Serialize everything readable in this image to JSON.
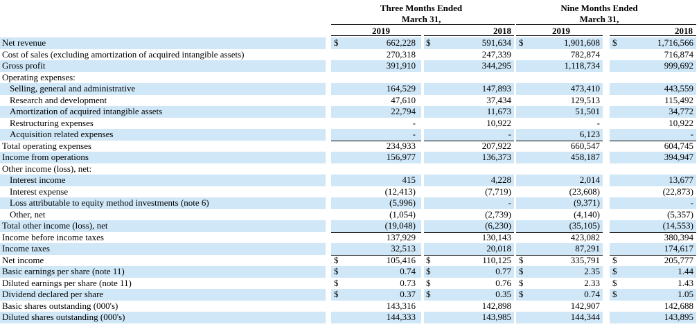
{
  "headers": {
    "three_months": "Three Months Ended",
    "nine_months": "Nine Months Ended",
    "march": "March 31,",
    "years": [
      "2019",
      "2018",
      "2019",
      "2018"
    ]
  },
  "rows": [
    {
      "label": "Net revenue",
      "indent": false,
      "values": [
        "662,228",
        "591,634",
        "1,901,608",
        "1,716,566"
      ],
      "dollar": [
        true,
        true,
        true,
        true
      ],
      "shade": true
    },
    {
      "label": "Cost of sales (excluding amortization of acquired intangible assets)",
      "indent": false,
      "values": [
        "270,318",
        "247,339",
        "782,874",
        "716,874"
      ],
      "dollar": [
        false,
        false,
        false,
        false
      ],
      "shade": false,
      "ul": true
    },
    {
      "label": "Gross profit",
      "indent": false,
      "values": [
        "391,910",
        "344,295",
        "1,118,734",
        "999,692"
      ],
      "dollar": [
        false,
        false,
        false,
        false
      ],
      "shade": true
    },
    {
      "label": "Operating expenses:",
      "indent": false,
      "values": [
        "",
        "",
        "",
        ""
      ],
      "dollar": [
        false,
        false,
        false,
        false
      ],
      "shade": false
    },
    {
      "label": "Selling, general and administrative",
      "indent": true,
      "values": [
        "164,529",
        "147,893",
        "473,410",
        "443,559"
      ],
      "dollar": [
        false,
        false,
        false,
        false
      ],
      "shade": true
    },
    {
      "label": "Research and development",
      "indent": true,
      "values": [
        "47,610",
        "37,434",
        "129,513",
        "115,492"
      ],
      "dollar": [
        false,
        false,
        false,
        false
      ],
      "shade": false
    },
    {
      "label": "Amortization of acquired intangible assets",
      "indent": true,
      "values": [
        "22,794",
        "11,673",
        "51,501",
        "34,772"
      ],
      "dollar": [
        false,
        false,
        false,
        false
      ],
      "shade": true
    },
    {
      "label": "Restructuring expenses",
      "indent": true,
      "values": [
        "-",
        "10,922",
        "-",
        "10,922"
      ],
      "dollar": [
        false,
        false,
        false,
        false
      ],
      "shade": false
    },
    {
      "label": "Acquisition related expenses",
      "indent": true,
      "values": [
        "-",
        "-",
        "6,123",
        "-"
      ],
      "dollar": [
        false,
        false,
        false,
        false
      ],
      "shade": true,
      "ul": true
    },
    {
      "label": "Total operating expenses",
      "indent": false,
      "values": [
        "234,933",
        "207,922",
        "660,547",
        "604,745"
      ],
      "dollar": [
        false,
        false,
        false,
        false
      ],
      "shade": false,
      "ul": true
    },
    {
      "label": "Income from operations",
      "indent": false,
      "values": [
        "156,977",
        "136,373",
        "458,187",
        "394,947"
      ],
      "dollar": [
        false,
        false,
        false,
        false
      ],
      "shade": true
    },
    {
      "label": "Other income (loss), net:",
      "indent": false,
      "values": [
        "",
        "",
        "",
        ""
      ],
      "dollar": [
        false,
        false,
        false,
        false
      ],
      "shade": false
    },
    {
      "label": "Interest income",
      "indent": true,
      "values": [
        "415",
        "4,228",
        "2,014",
        "13,677"
      ],
      "dollar": [
        false,
        false,
        false,
        false
      ],
      "shade": true
    },
    {
      "label": "Interest expense",
      "indent": true,
      "values": [
        "(12,413)",
        "(7,719)",
        "(23,608)",
        "(22,873)"
      ],
      "dollar": [
        false,
        false,
        false,
        false
      ],
      "shade": false
    },
    {
      "label": "Loss attributable to equity method investments (note 6)",
      "indent": true,
      "values": [
        "(5,996)",
        "-",
        "(9,371)",
        "-"
      ],
      "dollar": [
        false,
        false,
        false,
        false
      ],
      "shade": true
    },
    {
      "label": "Other, net",
      "indent": true,
      "values": [
        "(1,054)",
        "(2,739)",
        "(4,140)",
        "(5,357)"
      ],
      "dollar": [
        false,
        false,
        false,
        false
      ],
      "shade": false,
      "ul": true
    },
    {
      "label": "Total other income (loss), net",
      "indent": false,
      "values": [
        "(19,048)",
        "(6,230)",
        "(35,105)",
        "(14,553)"
      ],
      "dollar": [
        false,
        false,
        false,
        false
      ],
      "shade": true,
      "ul": true
    },
    {
      "label": "Income before income taxes",
      "indent": false,
      "values": [
        "137,929",
        "130,143",
        "423,082",
        "380,394"
      ],
      "dollar": [
        false,
        false,
        false,
        false
      ],
      "shade": false
    },
    {
      "label": "Income taxes",
      "indent": false,
      "values": [
        "32,513",
        "20,018",
        "87,291",
        "174,617"
      ],
      "dollar": [
        false,
        false,
        false,
        false
      ],
      "shade": true,
      "ul": true
    },
    {
      "label": "Net income",
      "indent": false,
      "values": [
        "105,416",
        "110,125",
        "335,791",
        "205,777"
      ],
      "dollar": [
        true,
        true,
        true,
        true
      ],
      "shade": false,
      "ul": true
    },
    {
      "label": "Basic earnings per share (note 11)",
      "indent": false,
      "values": [
        "0.74",
        "0.77",
        "2.35",
        "1.44"
      ],
      "dollar": [
        true,
        true,
        true,
        true
      ],
      "shade": true
    },
    {
      "label": "Diluted earnings per share (note 11)",
      "indent": false,
      "values": [
        "0.73",
        "0.76",
        "2.33",
        "1.43"
      ],
      "dollar": [
        true,
        true,
        true,
        true
      ],
      "shade": false
    },
    {
      "label": "Dividend declared per share",
      "indent": false,
      "values": [
        "0.37",
        "0.35",
        "0.74",
        "1.05"
      ],
      "dollar": [
        true,
        true,
        true,
        true
      ],
      "shade": true
    },
    {
      "label": "Basic shares outstanding (000's)",
      "indent": false,
      "values": [
        "143,316",
        "142,898",
        "142,907",
        "142,688"
      ],
      "dollar": [
        false,
        false,
        false,
        false
      ],
      "shade": false
    },
    {
      "label": "Diluted shares outstanding (000's)",
      "indent": false,
      "values": [
        "144,333",
        "143,985",
        "144,344",
        "143,895"
      ],
      "dollar": [
        false,
        false,
        false,
        false
      ],
      "shade": true
    }
  ],
  "currency_symbol": "$"
}
